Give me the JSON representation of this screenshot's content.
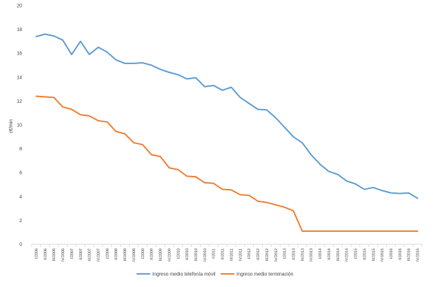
{
  "chart_data": {
    "type": "line",
    "title": "",
    "xlabel": "",
    "ylabel": "c€/min",
    "ylim": [
      0,
      20
    ],
    "yticks": [
      "0",
      "2",
      "4",
      "6",
      "8",
      "10",
      "12",
      "14",
      "16",
      "18",
      "20"
    ],
    "grid": false,
    "legend_position": "bottom",
    "categories": [
      "I/2006",
      "II/2006",
      "III/2006",
      "IV/2006",
      "I/2007",
      "II/2007",
      "III/2007",
      "IV/2007",
      "I/2008",
      "II/2008",
      "III/2008",
      "IV/2008",
      "I/2009",
      "II/2009",
      "III/2009",
      "IV/2009",
      "I/2010",
      "II/2010",
      "III/2010",
      "IV/2010",
      "I/2011",
      "II/2011",
      "III/2011",
      "IV/2011",
      "I/2012",
      "II/2012",
      "III/2012",
      "IV/2012",
      "I/2013",
      "II/2013",
      "III/2013",
      "IV/2013",
      "I/2014",
      "II/2014",
      "III/2014",
      "IV/2014",
      "I/2015",
      "II/2015",
      "III/2015",
      "IV/2015",
      "I/2016",
      "II/2016",
      "III/2016",
      "IV/2016"
    ],
    "series": [
      {
        "name": "Ingreso medio telefonía móvil",
        "color": "#5b9bd5",
        "values": [
          17.4,
          17.6,
          17.45,
          17.1,
          15.9,
          17.0,
          15.9,
          16.5,
          16.1,
          15.45,
          15.15,
          15.15,
          15.2,
          15.0,
          14.65,
          14.4,
          14.2,
          13.85,
          13.95,
          13.2,
          13.3,
          12.9,
          13.15,
          12.3,
          11.8,
          11.3,
          11.25,
          10.6,
          9.8,
          9.0,
          8.5,
          7.5,
          6.7,
          6.1,
          5.85,
          5.3,
          5.05,
          4.6,
          4.75,
          4.5,
          4.3,
          4.25,
          4.3,
          3.85
        ]
      },
      {
        "name": "Ingreso medio terminación",
        "color": "#ed7d31",
        "values": [
          12.4,
          12.35,
          12.3,
          11.5,
          11.3,
          10.85,
          10.75,
          10.35,
          10.25,
          9.45,
          9.25,
          8.5,
          8.35,
          7.5,
          7.35,
          6.4,
          6.25,
          5.7,
          5.65,
          5.15,
          5.1,
          4.6,
          4.55,
          4.15,
          4.1,
          3.6,
          3.5,
          3.3,
          3.1,
          2.8,
          1.1,
          1.1,
          1.1,
          1.1,
          1.1,
          1.1,
          1.1,
          1.1,
          1.1,
          1.1,
          1.1,
          1.1,
          1.1,
          1.1
        ]
      }
    ]
  }
}
